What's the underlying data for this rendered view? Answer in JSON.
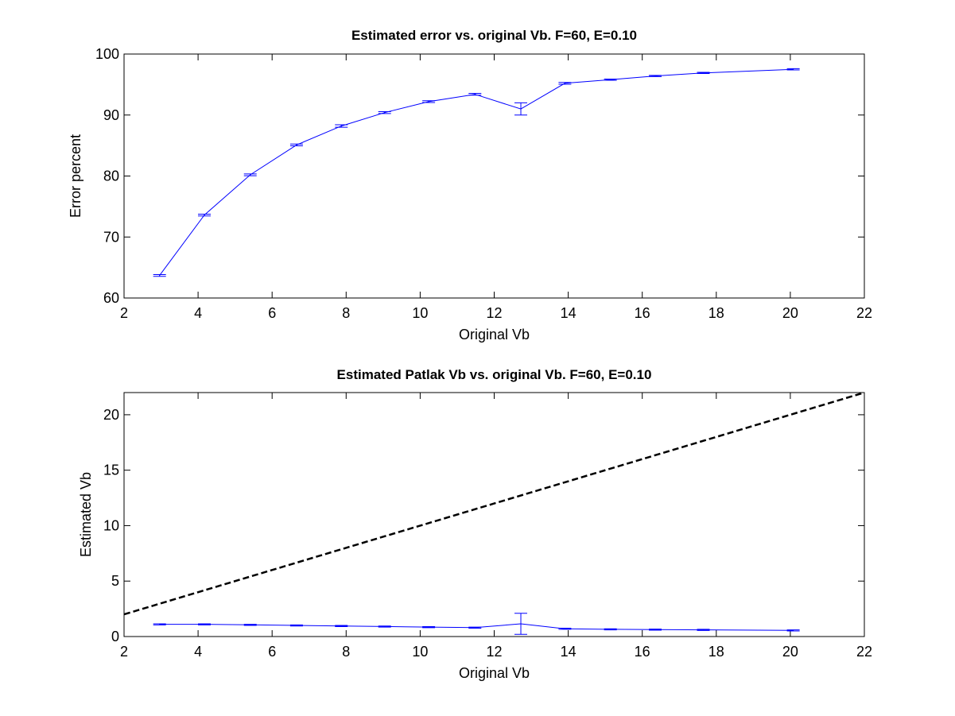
{
  "chart_data": [
    {
      "type": "line",
      "title": "Estimated error vs. original Vb. F=60, E=0.10",
      "xlabel": "Original Vb",
      "ylabel": "Error percent",
      "xlim": [
        2,
        22
      ],
      "ylim": [
        60,
        100
      ],
      "xticks": [
        2,
        4,
        6,
        8,
        10,
        12,
        14,
        16,
        18,
        20,
        22
      ],
      "yticks": [
        60,
        70,
        80,
        90,
        100
      ],
      "grid": false,
      "series": [
        {
          "color": "#0000ff",
          "style": "solid",
          "error_bars": true,
          "x": [
            2.96,
            4.17,
            5.41,
            6.66,
            7.87,
            9.04,
            10.23,
            11.48,
            12.72,
            13.91,
            15.14,
            16.35,
            17.65,
            20.08
          ],
          "y": [
            63.7,
            73.6,
            80.2,
            85.1,
            88.2,
            90.4,
            92.2,
            93.4,
            91.0,
            95.2,
            95.8,
            96.4,
            96.9,
            97.5
          ],
          "err": [
            0.15,
            0.15,
            0.15,
            0.15,
            0.2,
            0.15,
            0.15,
            0.15,
            1.0,
            0.15,
            0.1,
            0.1,
            0.1,
            0.1
          ]
        }
      ]
    },
    {
      "type": "line",
      "title": "Estimated Patlak Vb vs. original Vb. F=60, E=0.10",
      "xlabel": "Original Vb",
      "ylabel": "Estimated Vb",
      "xlim": [
        2,
        22
      ],
      "ylim": [
        0,
        22
      ],
      "xticks": [
        2,
        4,
        6,
        8,
        10,
        12,
        14,
        16,
        18,
        20,
        22
      ],
      "yticks": [
        0,
        5,
        10,
        15,
        20
      ],
      "grid": false,
      "series": [
        {
          "color": "#0000ff",
          "style": "solid",
          "error_bars": true,
          "x": [
            2.96,
            4.17,
            5.41,
            6.66,
            7.87,
            9.04,
            10.23,
            11.48,
            12.72,
            13.91,
            15.14,
            16.35,
            17.65,
            20.08
          ],
          "y": [
            1.1,
            1.1,
            1.05,
            1.0,
            0.95,
            0.9,
            0.85,
            0.8,
            1.15,
            0.7,
            0.65,
            0.62,
            0.6,
            0.55
          ],
          "err": [
            0.05,
            0.05,
            0.05,
            0.05,
            0.05,
            0.05,
            0.05,
            0.05,
            0.95,
            0.05,
            0.05,
            0.05,
            0.05,
            0.05
          ]
        },
        {
          "color": "#000000",
          "style": "dashed",
          "x": [
            2,
            22
          ],
          "y": [
            2,
            22
          ]
        }
      ]
    }
  ]
}
